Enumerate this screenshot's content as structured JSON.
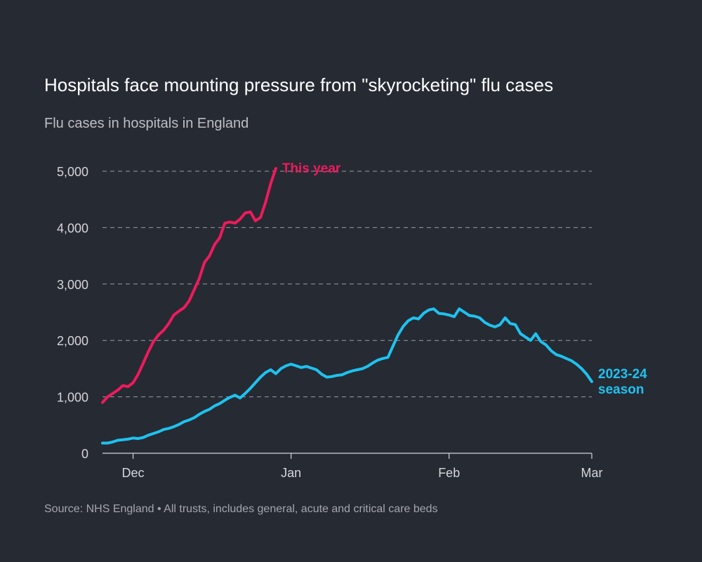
{
  "title": "Hospitals face mounting pressure from \"skyrocketing\" flu cases",
  "subtitle": "Flu cases in hospitals in England",
  "source": "Source: NHS England • All trusts, includes general, acute and critical care beds",
  "colors": {
    "background": "#262a33",
    "this_year": "#ee1a5c",
    "season_2023_24": "#1ec2ef",
    "grid": "#9a9ca1",
    "axis": "#d4d6da"
  },
  "chart_data": {
    "type": "line",
    "title": "Hospitals face mounting pressure from \"skyrocketing\" flu cases",
    "subtitle": "Flu cases in hospitals in England",
    "xlabel": "",
    "ylabel": "",
    "x_unit": "days from 25 Nov",
    "xlim": [
      0,
      96
    ],
    "ylim": [
      0,
      5000
    ],
    "yticks": [
      0,
      1000,
      2000,
      3000,
      4000,
      5000
    ],
    "ytick_labels": [
      "0",
      "1,000",
      "2,000",
      "3,000",
      "4,000",
      "5,000"
    ],
    "xticks": [
      6,
      37,
      68,
      96
    ],
    "xtick_labels": [
      "Dec",
      "Jan",
      "Feb",
      "Mar"
    ],
    "grid": "horizontal dashed",
    "series": [
      {
        "name": "This year",
        "color": "#ee1a5c",
        "label_lines": [
          "This year"
        ],
        "x": [
          0,
          1,
          2,
          3,
          4,
          5,
          6,
          7,
          8,
          9,
          10,
          11,
          12,
          13,
          14,
          15,
          16,
          17,
          18,
          19,
          20,
          21,
          22,
          23,
          24,
          25,
          26,
          27,
          28,
          29,
          30,
          31,
          32,
          33,
          34
        ],
        "y": [
          900,
          1000,
          1060,
          1120,
          1200,
          1180,
          1250,
          1400,
          1600,
          1800,
          1980,
          2100,
          2180,
          2300,
          2450,
          2520,
          2580,
          2700,
          2900,
          3100,
          3380,
          3500,
          3700,
          3820,
          4080,
          4100,
          4080,
          4150,
          4260,
          4280,
          4120,
          4180,
          4450,
          4780,
          5050
        ]
      },
      {
        "name": "2023-24 season",
        "color": "#1ec2ef",
        "label_lines": [
          "2023-24",
          "season"
        ],
        "x": [
          0,
          1,
          2,
          3,
          4,
          5,
          6,
          7,
          8,
          9,
          10,
          11,
          12,
          13,
          14,
          15,
          16,
          17,
          18,
          19,
          20,
          21,
          22,
          23,
          24,
          25,
          26,
          27,
          28,
          29,
          30,
          31,
          32,
          33,
          34,
          35,
          36,
          37,
          38,
          39,
          40,
          41,
          42,
          43,
          44,
          45,
          46,
          47,
          48,
          49,
          50,
          51,
          52,
          53,
          54,
          55,
          56,
          57,
          58,
          59,
          60,
          61,
          62,
          63,
          64,
          65,
          66,
          67,
          68,
          69,
          70,
          71,
          72,
          73,
          74,
          75,
          76,
          77,
          78,
          79,
          80,
          81,
          82,
          83,
          84,
          85,
          86,
          87,
          88,
          89,
          90,
          91,
          92,
          93,
          94,
          95,
          96
        ],
        "y": [
          180,
          180,
          200,
          230,
          240,
          250,
          270,
          260,
          280,
          320,
          350,
          380,
          420,
          440,
          470,
          510,
          560,
          590,
          630,
          690,
          740,
          780,
          840,
          880,
          940,
          990,
          1030,
          980,
          1060,
          1150,
          1250,
          1350,
          1430,
          1480,
          1410,
          1500,
          1550,
          1580,
          1550,
          1520,
          1540,
          1510,
          1480,
          1400,
          1350,
          1360,
          1380,
          1390,
          1430,
          1460,
          1480,
          1500,
          1540,
          1600,
          1650,
          1680,
          1700,
          1900,
          2100,
          2250,
          2350,
          2400,
          2380,
          2480,
          2540,
          2560,
          2480,
          2470,
          2450,
          2420,
          2560,
          2500,
          2440,
          2430,
          2400,
          2320,
          2270,
          2240,
          2280,
          2400,
          2300,
          2280,
          2120,
          2060,
          2000,
          2120,
          1980,
          1920,
          1820,
          1750,
          1720,
          1680,
          1640,
          1580,
          1500,
          1400,
          1270
        ]
      }
    ]
  }
}
